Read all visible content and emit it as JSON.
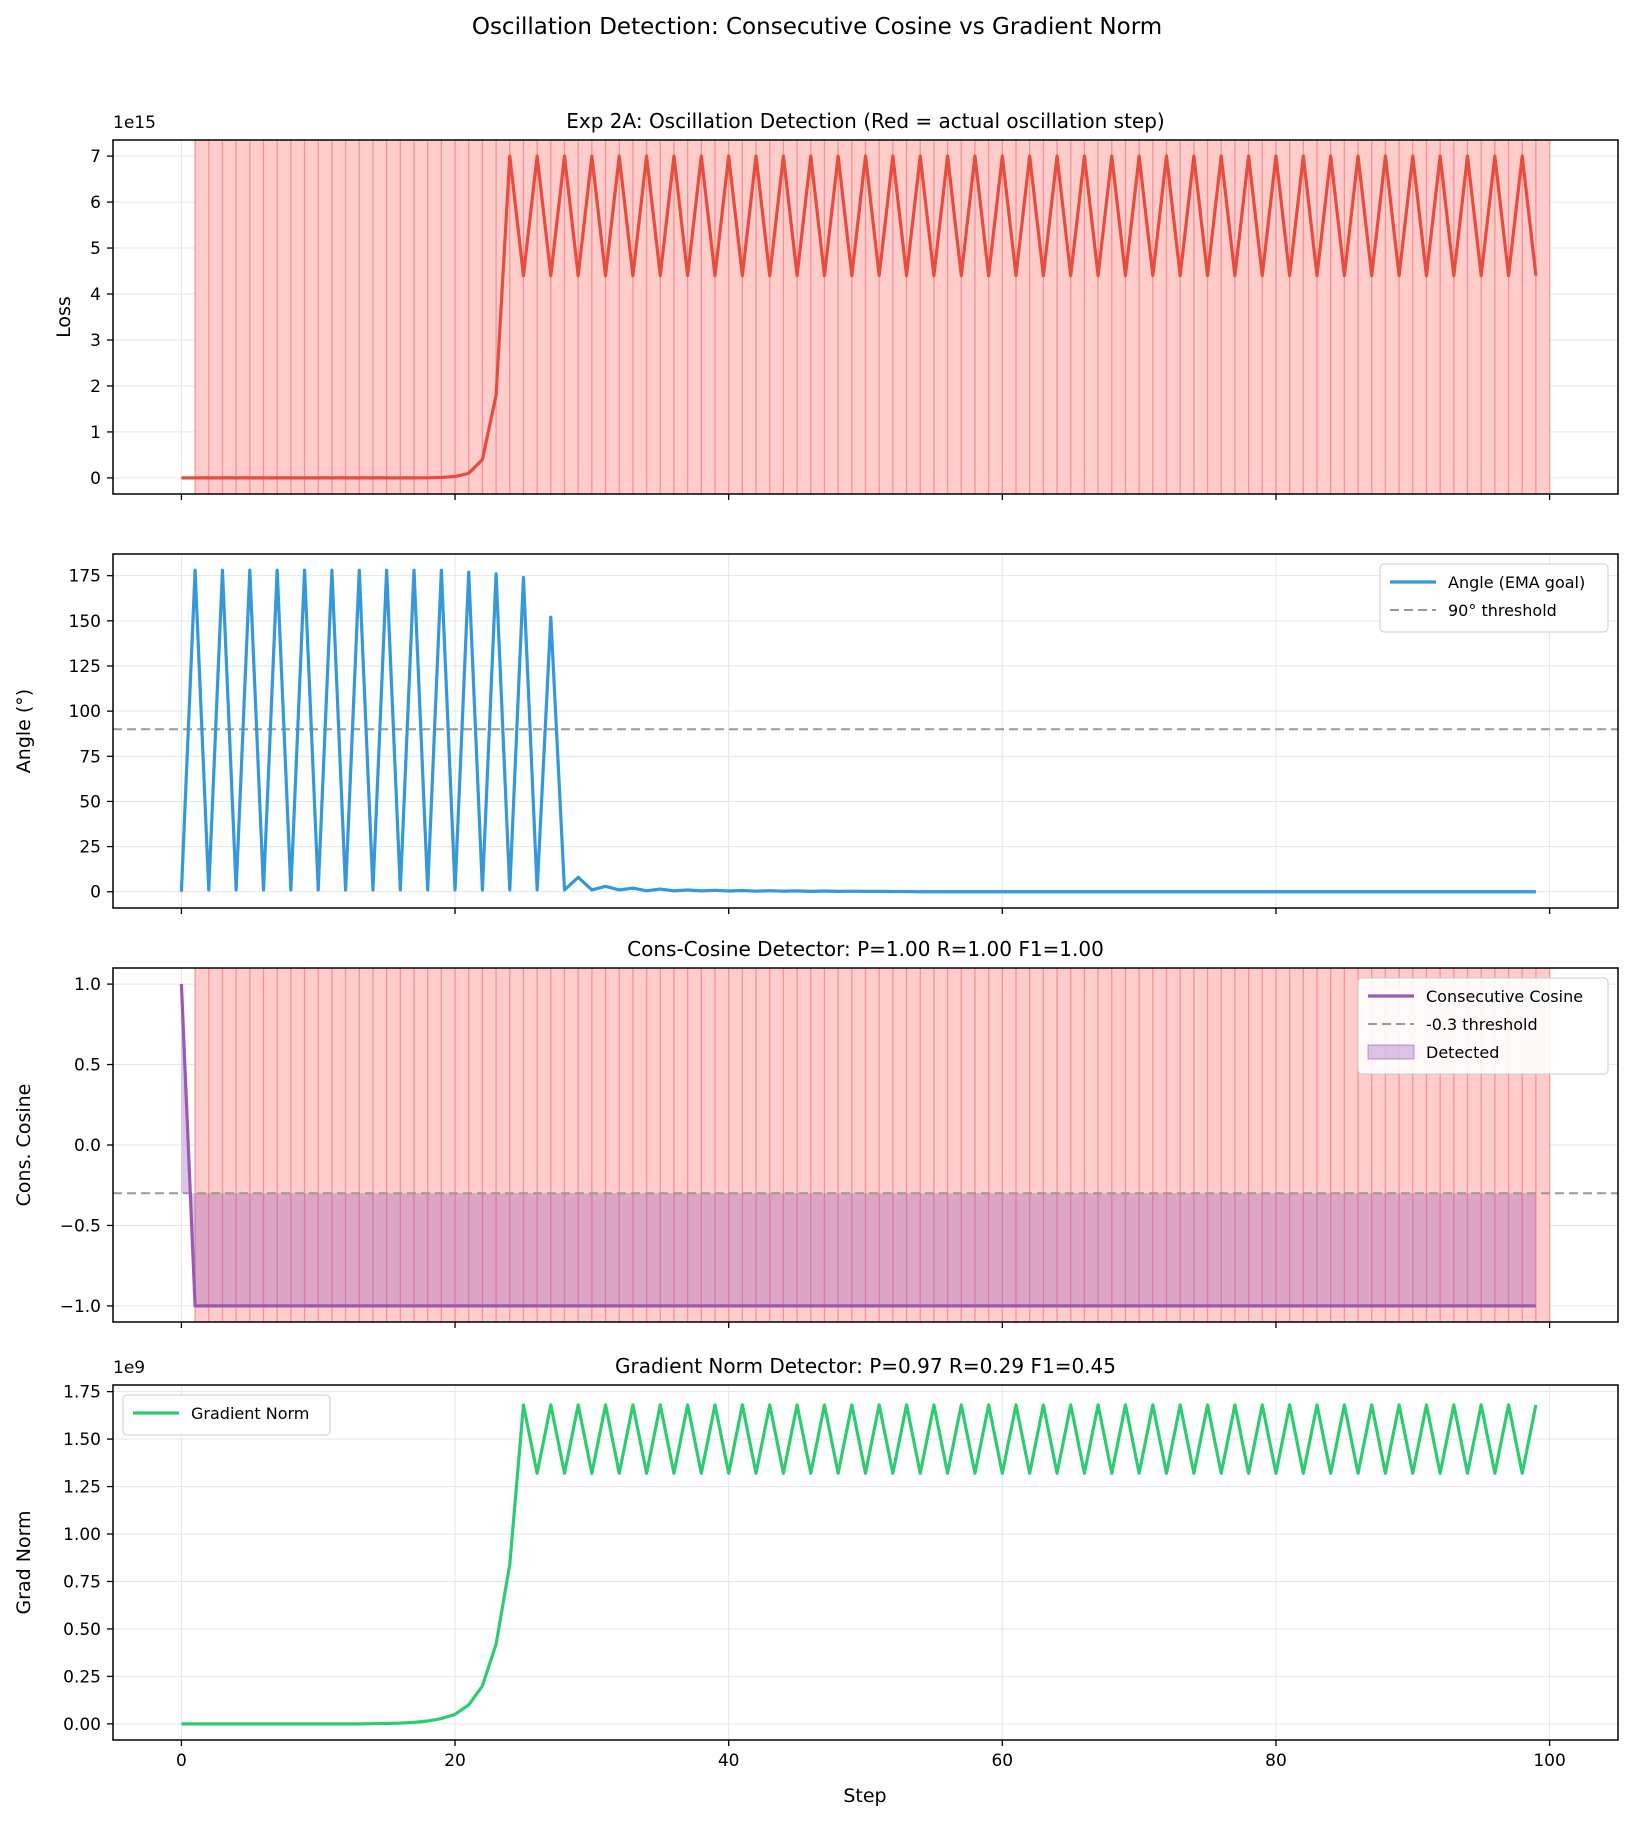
{
  "figure": {
    "suptitle": "Oscillation Detection: Consecutive Cosine vs Gradient Norm",
    "xlabel": "Step"
  },
  "chart_data": [
    {
      "type": "line",
      "title": "Exp 2A: Oscillation Detection (Red = actual oscillation step)",
      "ylabel": "Loss",
      "offset_label": "1e15",
      "xlim": [
        -5,
        105
      ],
      "ylim": [
        -0.35,
        7.35
      ],
      "x_ticks": [
        0,
        20,
        40,
        60,
        80,
        100
      ],
      "y_ticks": [
        0,
        1,
        2,
        3,
        4,
        5,
        6,
        7
      ],
      "grid": true,
      "shaded_steps": {
        "from": 1,
        "to": 100,
        "color": "#ff0000",
        "meaning": "actual oscillation step"
      },
      "series": [
        {
          "color": "#e74c3c",
          "x_start": 0,
          "x_step": 1,
          "values": [
            0,
            0,
            0,
            0,
            0,
            0,
            0,
            0,
            0,
            0,
            0,
            0,
            0,
            0,
            0,
            0,
            0,
            0,
            0.002,
            0.01,
            0.03,
            0.1,
            0.4,
            1.8,
            7.0,
            4.4,
            7.0,
            4.4,
            7.0,
            4.4,
            7.0,
            4.4,
            7.0,
            4.4,
            7.0,
            4.4,
            7.0,
            4.4,
            7.0,
            4.4,
            7.0,
            4.4,
            7.0,
            4.4,
            7.0,
            4.4,
            7.0,
            4.4,
            7.0,
            4.4,
            7.0,
            4.4,
            7.0,
            4.4,
            7.0,
            4.4,
            7.0,
            4.4,
            7.0,
            4.4,
            7.0,
            4.4,
            7.0,
            4.4,
            7.0,
            4.4,
            7.0,
            4.4,
            7.0,
            4.4,
            7.0,
            4.4,
            7.0,
            4.4,
            7.0,
            4.4,
            7.0,
            4.4,
            7.0,
            4.4,
            7.0,
            4.4,
            7.0,
            4.4,
            7.0,
            4.4,
            7.0,
            4.4,
            7.0,
            4.4,
            7.0,
            4.4,
            7.0,
            4.4,
            7.0,
            4.4,
            7.0,
            4.4,
            7.0,
            4.4
          ]
        }
      ]
    },
    {
      "type": "line",
      "title": "",
      "ylabel": "Angle (°)",
      "xlim": [
        -5,
        105
      ],
      "ylim": [
        -9,
        187
      ],
      "x_ticks": [
        0,
        20,
        40,
        60,
        80,
        100
      ],
      "y_ticks": [
        0,
        25,
        50,
        75,
        100,
        125,
        150,
        175
      ],
      "grid": true,
      "legend": {
        "position": "top-right",
        "entries": [
          "Angle (EMA goal)",
          "90° threshold"
        ]
      },
      "hlines": [
        {
          "name": "90° threshold",
          "y": 90,
          "style": "dashed",
          "color": "#999999"
        }
      ],
      "series": [
        {
          "name": "Angle (EMA goal)",
          "color": "#3498db",
          "x_start": 0,
          "x_step": 1,
          "values": [
            0,
            178,
            1,
            178,
            1,
            178,
            1,
            178,
            1,
            178,
            1,
            178,
            1,
            178,
            1,
            178,
            1,
            178,
            1,
            178,
            1,
            177,
            1,
            176,
            1,
            174,
            1,
            152,
            1,
            8,
            1,
            3,
            1,
            2,
            0.5,
            1.5,
            0.5,
            1,
            0.5,
            0.8,
            0.4,
            0.7,
            0.3,
            0.6,
            0.3,
            0.5,
            0.2,
            0.4,
            0.2,
            0.3,
            0.2,
            0.2,
            0.1,
            0.1,
            0,
            0,
            0,
            0,
            0,
            0,
            0,
            0,
            0,
            0,
            0,
            0,
            0,
            0,
            0,
            0,
            0,
            0,
            0,
            0,
            0,
            0,
            0,
            0,
            0,
            0,
            0,
            0,
            0,
            0,
            0,
            0,
            0,
            0,
            0,
            0,
            0,
            0,
            0,
            0,
            0,
            0,
            0,
            0,
            0,
            0
          ]
        }
      ]
    },
    {
      "type": "line",
      "title": "Cons-Cosine Detector: P=1.00 R=1.00 F1=1.00",
      "ylabel": "Cons. Cosine",
      "xlim": [
        -5,
        105
      ],
      "ylim": [
        -1.1,
        1.1
      ],
      "x_ticks": [
        0,
        20,
        40,
        60,
        80,
        100
      ],
      "y_ticks": [
        -1.0,
        -0.5,
        0.0,
        0.5,
        1.0
      ],
      "y_tick_labels": [
        "−1.0",
        "−0.5",
        "0.0",
        "0.5",
        "1.0"
      ],
      "grid": true,
      "legend": {
        "position": "top-right",
        "entries": [
          "Consecutive Cosine",
          "-0.3 threshold",
          "Detected"
        ]
      },
      "shaded_steps": {
        "from": 1,
        "to": 100,
        "color": "#ff0000",
        "meaning": "actual oscillation step"
      },
      "hlines": [
        {
          "name": "-0.3 threshold",
          "y": -0.3,
          "style": "dashed",
          "color": "#999999"
        }
      ],
      "detected_fill": {
        "name": "Detected",
        "color": "#9b59b6",
        "from_y": -0.3
      },
      "series": [
        {
          "name": "Consecutive Cosine",
          "color": "#9b59b6",
          "x_start": 0,
          "x_step": 1,
          "values": [
            1.0,
            -1,
            -1,
            -1,
            -1,
            -1,
            -1,
            -1,
            -1,
            -1,
            -1,
            -1,
            -1,
            -1,
            -1,
            -1,
            -1,
            -1,
            -1,
            -1,
            -1,
            -1,
            -1,
            -1,
            -1,
            -1,
            -1,
            -1,
            -1,
            -1,
            -1,
            -1,
            -1,
            -1,
            -1,
            -1,
            -1,
            -1,
            -1,
            -1,
            -1,
            -1,
            -1,
            -1,
            -1,
            -1,
            -1,
            -1,
            -1,
            -1,
            -1,
            -1,
            -1,
            -1,
            -1,
            -1,
            -1,
            -1,
            -1,
            -1,
            -1,
            -1,
            -1,
            -1,
            -1,
            -1,
            -1,
            -1,
            -1,
            -1,
            -1,
            -1,
            -1,
            -1,
            -1,
            -1,
            -1,
            -1,
            -1,
            -1,
            -1,
            -1,
            -1,
            -1,
            -1,
            -1,
            -1,
            -1,
            -1,
            -1,
            -1,
            -1,
            -1,
            -1,
            -1,
            -1,
            -1,
            -1,
            -1,
            -1
          ]
        }
      ]
    },
    {
      "type": "line",
      "title": "Gradient Norm Detector: P=0.97 R=0.29 F1=0.45",
      "ylabel": "Grad Norm",
      "offset_label": "1e9",
      "xlim": [
        -5,
        105
      ],
      "ylim": [
        -0.085,
        1.785
      ],
      "x_ticks": [
        0,
        20,
        40,
        60,
        80,
        100
      ],
      "y_ticks": [
        0,
        0.25,
        0.5,
        0.75,
        1.0,
        1.25,
        1.5,
        1.75
      ],
      "y_tick_labels": [
        "0.00",
        "0.25",
        "0.50",
        "0.75",
        "1.00",
        "1.25",
        "1.50",
        "1.75"
      ],
      "grid": true,
      "legend": {
        "position": "top-left",
        "entries": [
          "Gradient Norm"
        ]
      },
      "series": [
        {
          "name": "Gradient Norm",
          "color": "#2ecc71",
          "x_start": 0,
          "x_step": 1,
          "values": [
            0,
            0,
            0,
            0,
            0,
            0,
            0,
            0,
            0,
            0,
            0,
            0,
            0,
            0,
            0.001,
            0.002,
            0.004,
            0.008,
            0.015,
            0.028,
            0.05,
            0.1,
            0.2,
            0.42,
            0.84,
            1.68,
            1.32,
            1.68,
            1.32,
            1.68,
            1.32,
            1.68,
            1.32,
            1.68,
            1.32,
            1.68,
            1.32,
            1.68,
            1.32,
            1.68,
            1.32,
            1.68,
            1.32,
            1.68,
            1.32,
            1.68,
            1.32,
            1.68,
            1.32,
            1.68,
            1.32,
            1.68,
            1.32,
            1.68,
            1.32,
            1.68,
            1.32,
            1.68,
            1.32,
            1.68,
            1.32,
            1.68,
            1.32,
            1.68,
            1.32,
            1.68,
            1.32,
            1.68,
            1.32,
            1.68,
            1.32,
            1.68,
            1.32,
            1.68,
            1.32,
            1.68,
            1.32,
            1.68,
            1.32,
            1.68,
            1.32,
            1.68,
            1.32,
            1.68,
            1.32,
            1.68,
            1.32,
            1.68,
            1.32,
            1.68,
            1.32,
            1.68,
            1.32,
            1.68,
            1.32,
            1.68,
            1.32,
            1.68,
            1.32,
            1.68
          ]
        }
      ]
    }
  ]
}
